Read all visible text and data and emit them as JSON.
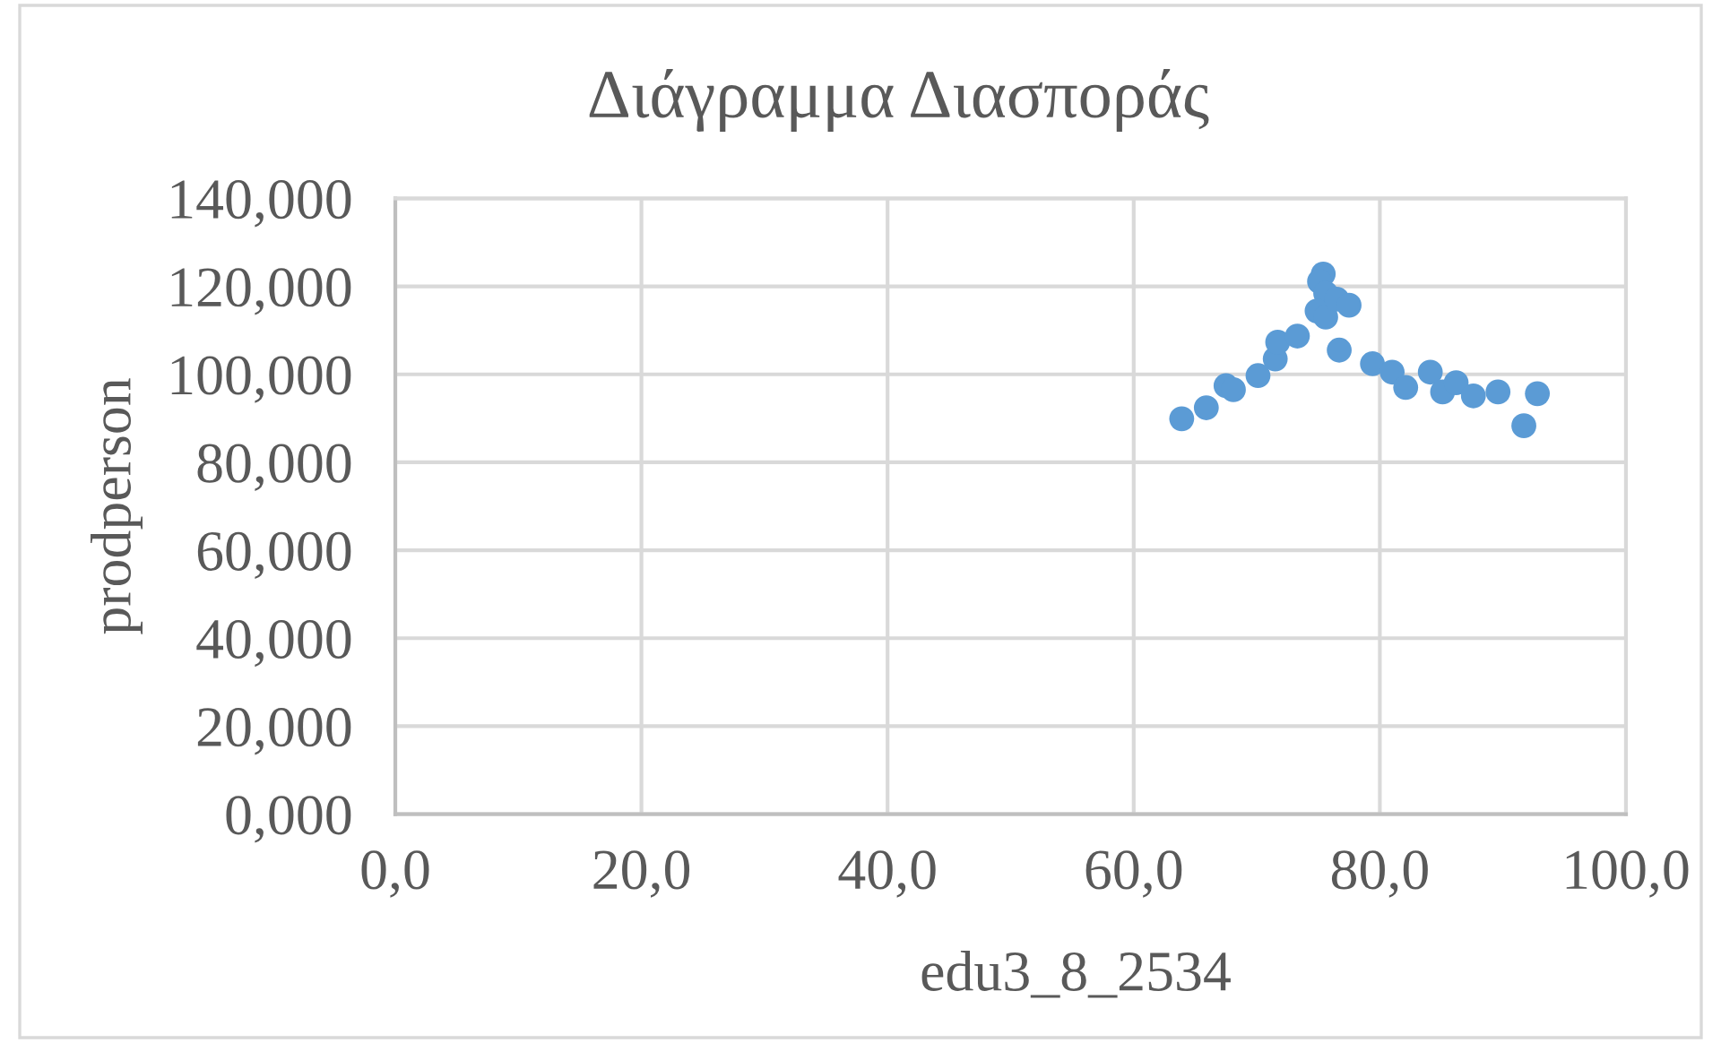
{
  "chart_data": {
    "type": "scatter",
    "title": "Διάγραμμα Διασποράς",
    "xlabel": "edu3_8_2534",
    "ylabel": "prodperson",
    "x": [
      63.9,
      65.9,
      67.5,
      68.1,
      70.1,
      71.5,
      71.7,
      73.3,
      75.4,
      75.1,
      75.6,
      74.9,
      75.6,
      76.5,
      77.5,
      76.7,
      79.4,
      81.0,
      82.1,
      84.1,
      85.1,
      86.2,
      87.6,
      89.6,
      91.7,
      92.8
    ],
    "values": [
      89.9,
      92.4,
      97.4,
      96.5,
      99.7,
      103.5,
      107.3,
      108.7,
      122.8,
      121.1,
      118.4,
      114.4,
      113.0,
      117.1,
      115.7,
      105.5,
      102.4,
      100.5,
      97.0,
      100.5,
      96.0,
      98.1,
      95.1,
      96.0,
      88.3,
      95.6
    ],
    "color": "#5b9bd5",
    "marker": "circle",
    "xlim": [
      0,
      100
    ],
    "xticks": [
      {
        "value": 0,
        "label": "0,0"
      },
      {
        "value": 20,
        "label": "20,0"
      },
      {
        "value": 40,
        "label": "40,0"
      },
      {
        "value": 60,
        "label": "60,0"
      },
      {
        "value": 80,
        "label": "80,0"
      },
      {
        "value": 100,
        "label": "100,0"
      }
    ],
    "ylim": [
      0,
      140
    ],
    "yticks": [
      {
        "value": 0,
        "label": "0,000"
      },
      {
        "value": 20,
        "label": "20,000"
      },
      {
        "value": 40,
        "label": "40,000"
      },
      {
        "value": 60,
        "label": "60,000"
      },
      {
        "value": 80,
        "label": "80,000"
      },
      {
        "value": 100,
        "label": "100,000"
      },
      {
        "value": 120,
        "label": "120,000"
      },
      {
        "value": 140,
        "label": "140,000"
      }
    ],
    "grid": true
  }
}
